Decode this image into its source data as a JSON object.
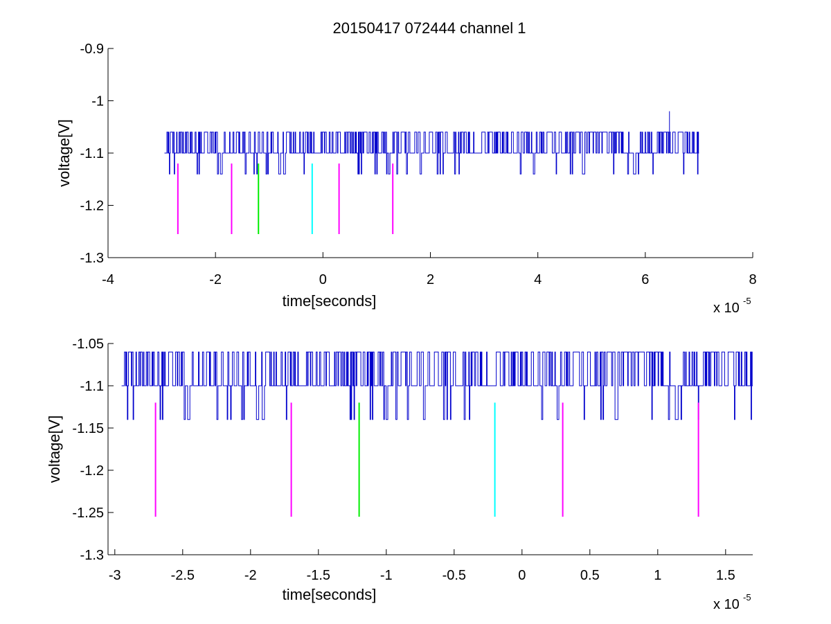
{
  "figure_title": "20150417 072444 channel 1",
  "colors": {
    "signal": "#0000cc",
    "magenta": "#ff00ff",
    "green": "#00ee00",
    "cyan": "#00ffff"
  },
  "chart_data": [
    {
      "type": "line",
      "title": "20150417 072444 channel 1",
      "xlabel": "time[seconds]",
      "ylabel": "voltage[V]",
      "x_exponent": "x 10",
      "x_exponent_power": "-5",
      "xlim": [
        -4,
        8
      ],
      "ylim": [
        -1.3,
        -0.9
      ],
      "xticks": [
        "-4",
        "-2",
        "0",
        "2",
        "4",
        "6",
        "8"
      ],
      "yticks": [
        "-0.9",
        "-1",
        "-1.1",
        "-1.2",
        "-1.3"
      ],
      "grid": false,
      "series": [
        {
          "color": "blue",
          "x_range": [
            -2.95,
            7.0
          ],
          "baseline": -1.1,
          "levels": [
            -1.06,
            -1.1,
            -1.14
          ],
          "note_peak": {
            "x": 6.45,
            "y": -1.02
          }
        }
      ],
      "markers": [
        {
          "x": -2.7,
          "y_top": -1.12,
          "y_bottom": -1.255,
          "color": "magenta"
        },
        {
          "x": -1.7,
          "y_top": -1.12,
          "y_bottom": -1.255,
          "color": "magenta"
        },
        {
          "x": -1.2,
          "y_top": -1.12,
          "y_bottom": -1.255,
          "color": "green"
        },
        {
          "x": -0.2,
          "y_top": -1.12,
          "y_bottom": -1.255,
          "color": "cyan"
        },
        {
          "x": 0.3,
          "y_top": -1.12,
          "y_bottom": -1.255,
          "color": "magenta"
        },
        {
          "x": 1.3,
          "y_top": -1.12,
          "y_bottom": -1.255,
          "color": "magenta"
        }
      ]
    },
    {
      "type": "line",
      "xlabel": "time[seconds]",
      "ylabel": "voltage[V]",
      "x_exponent": "x 10",
      "x_exponent_power": "-5",
      "xlim": [
        -3.05,
        1.7
      ],
      "ylim": [
        -1.3,
        -1.05
      ],
      "xticks": [
        "-3",
        "-2.5",
        "-2",
        "-1.5",
        "-1",
        "-0.5",
        "0",
        "0.5",
        "1",
        "1.5"
      ],
      "yticks": [
        "-1.05",
        "-1.1",
        "-1.15",
        "-1.2",
        "-1.25",
        "-1.3"
      ],
      "grid": false,
      "series": [
        {
          "color": "blue",
          "x_range": [
            -2.95,
            1.7
          ],
          "baseline": -1.1,
          "levels": [
            -1.06,
            -1.1,
            -1.14
          ]
        }
      ],
      "markers": [
        {
          "x": -2.7,
          "y_top": -1.12,
          "y_bottom": -1.255,
          "color": "magenta"
        },
        {
          "x": -1.7,
          "y_top": -1.12,
          "y_bottom": -1.255,
          "color": "magenta"
        },
        {
          "x": -1.2,
          "y_top": -1.12,
          "y_bottom": -1.255,
          "color": "green"
        },
        {
          "x": -0.2,
          "y_top": -1.12,
          "y_bottom": -1.255,
          "color": "cyan"
        },
        {
          "x": 0.3,
          "y_top": -1.12,
          "y_bottom": -1.255,
          "color": "magenta"
        },
        {
          "x": 1.3,
          "y_top": -1.12,
          "y_bottom": -1.255,
          "color": "magenta"
        }
      ]
    }
  ]
}
